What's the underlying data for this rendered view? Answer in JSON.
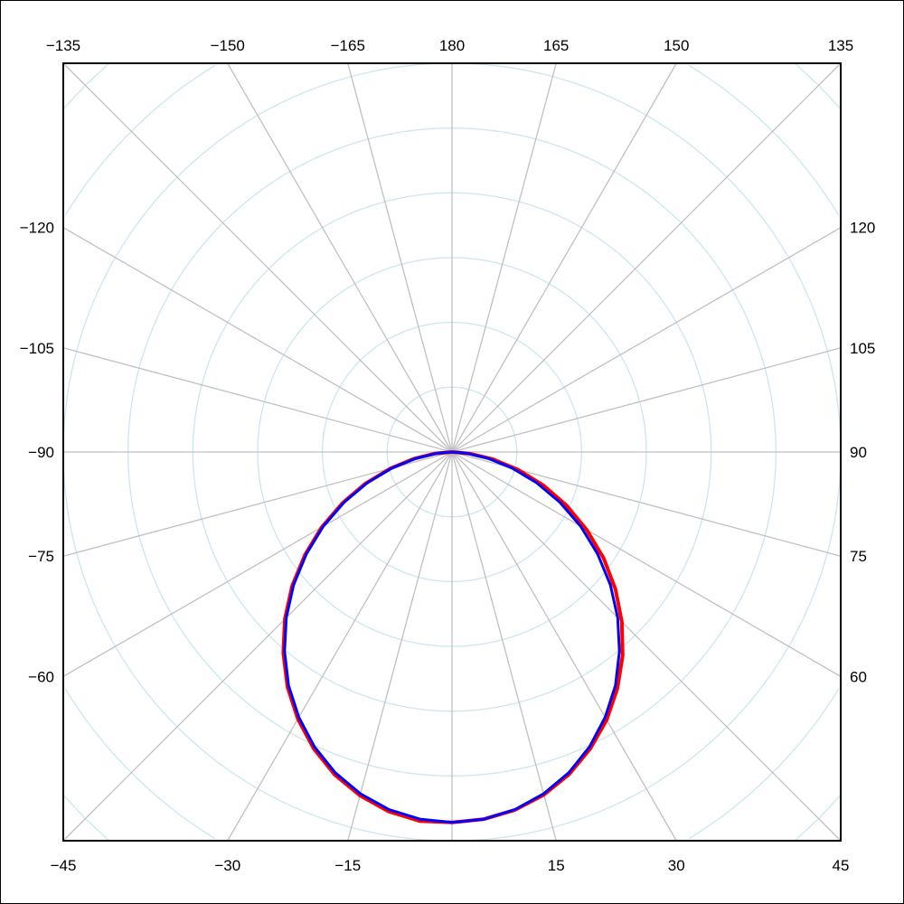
{
  "chart_data": {
    "type": "polar",
    "angle_unit": "degrees",
    "angle_zero": "bottom",
    "angle_direction": "clockwise",
    "spoke_step": 15,
    "ring_count_inside_frame": 6,
    "radial_range": [
      0,
      1
    ],
    "grid": true,
    "angle_tick_labels": {
      "top": [
        -135,
        -150,
        -165,
        180,
        165,
        150,
        135
      ],
      "left": [
        -120,
        -105,
        -90,
        -75,
        -60
      ],
      "right": [
        120,
        105,
        90,
        75,
        60
      ],
      "bottom": [
        -45,
        -30,
        -15,
        15,
        30,
        45
      ]
    },
    "theta": [
      -90,
      -85,
      -80,
      -75,
      -70,
      -65,
      -60,
      -55,
      -50,
      -45,
      -40,
      -35,
      -30,
      -25,
      -20,
      -15,
      -10,
      -5,
      0,
      5,
      10,
      15,
      20,
      25,
      30,
      35,
      40,
      45,
      50,
      55,
      60,
      65,
      70,
      75,
      80,
      85,
      90
    ],
    "series": [
      {
        "color": "#ff0000",
        "r": [
          0,
          0.043,
          0.099,
          0.165,
          0.237,
          0.311,
          0.387,
          0.462,
          0.537,
          0.608,
          0.675,
          0.738,
          0.793,
          0.842,
          0.883,
          0.915,
          0.939,
          0.953,
          0.953,
          0.948,
          0.935,
          0.913,
          0.882,
          0.842,
          0.796,
          0.742,
          0.683,
          0.618,
          0.549,
          0.476,
          0.4,
          0.325,
          0.25,
          0.176,
          0.107,
          0.045,
          0
        ]
      },
      {
        "color": "#0000ff",
        "r": [
          0,
          0.038,
          0.094,
          0.16,
          0.232,
          0.306,
          0.382,
          0.457,
          0.532,
          0.603,
          0.67,
          0.733,
          0.788,
          0.837,
          0.878,
          0.91,
          0.934,
          0.948,
          0.953,
          0.948,
          0.934,
          0.91,
          0.878,
          0.837,
          0.788,
          0.733,
          0.67,
          0.603,
          0.532,
          0.457,
          0.382,
          0.306,
          0.232,
          0.16,
          0.094,
          0.038,
          0
        ]
      }
    ],
    "colors": {
      "spokes": "#c0c0c0",
      "rings": "#cde6ee",
      "frame": "#000000"
    }
  }
}
